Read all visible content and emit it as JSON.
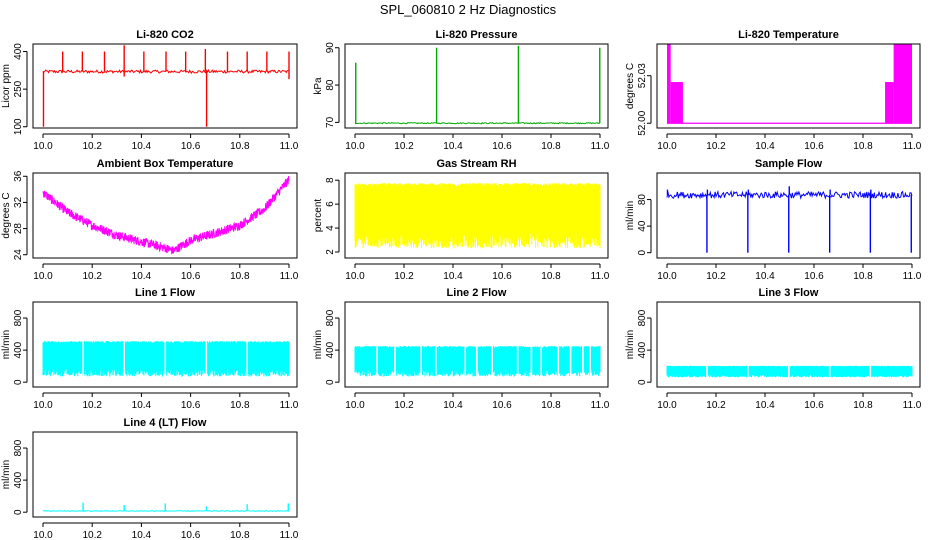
{
  "figure_title": "SPL_060810  2 Hz Diagnostics",
  "chart_data": [
    {
      "type": "line",
      "title": "Li-820 CO2",
      "ylabel": "Licor ppm",
      "x_ticks": [
        "10.0",
        "10.2",
        "10.4",
        "10.6",
        "10.8",
        "11.0"
      ],
      "x_range": [
        10.0,
        11.0
      ],
      "y_ticks": [
        "100",
        "250",
        "400"
      ],
      "y_tick_values": [
        100,
        250,
        400
      ],
      "ylim": [
        95,
        430
      ],
      "color": "#ff0000",
      "pattern": "spikes",
      "base": 320,
      "noise": 6,
      "spikes": [
        {
          "x": 10.002,
          "y": 100
        },
        {
          "x": 10.08,
          "y": 400
        },
        {
          "x": 10.16,
          "y": 400
        },
        {
          "x": 10.25,
          "y": 400
        },
        {
          "x": 10.33,
          "y": 425
        },
        {
          "x": 10.33,
          "y": 300
        },
        {
          "x": 10.41,
          "y": 400
        },
        {
          "x": 10.5,
          "y": 400
        },
        {
          "x": 10.58,
          "y": 400
        },
        {
          "x": 10.66,
          "y": 410
        },
        {
          "x": 10.665,
          "y": 100
        },
        {
          "x": 10.75,
          "y": 400
        },
        {
          "x": 10.83,
          "y": 400
        },
        {
          "x": 10.91,
          "y": 400
        },
        {
          "x": 11.0,
          "y": 400
        },
        {
          "x": 11.0,
          "y": 290
        }
      ]
    },
    {
      "type": "line",
      "title": "Li-820 Pressure",
      "ylabel": "kPa",
      "x_ticks": [
        "10.0",
        "10.2",
        "10.4",
        "10.6",
        "10.8",
        "11.0"
      ],
      "x_range": [
        10.0,
        11.0
      ],
      "y_ticks": [
        "70",
        "80",
        "90"
      ],
      "y_tick_values": [
        70,
        80,
        90
      ],
      "ylim": [
        68.5,
        91
      ],
      "color": "#00aa00",
      "pattern": "flat_spikes",
      "base": 69.8,
      "noise": 0.15,
      "spikes": [
        {
          "x": 10.003,
          "y": 86
        },
        {
          "x": 10.333,
          "y": 90
        },
        {
          "x": 10.667,
          "y": 90.5
        },
        {
          "x": 10.999,
          "y": 90
        }
      ]
    },
    {
      "type": "line",
      "title": "Li-820 Temperature",
      "ylabel": "degrees C",
      "x_ticks": [
        "10.0",
        "10.2",
        "10.4",
        "10.6",
        "10.8",
        "11.0"
      ],
      "x_range": [
        10.0,
        11.0
      ],
      "y_ticks": [
        "52.00",
        "52.03"
      ],
      "y_tick_values": [
        52.0,
        52.03
      ],
      "ylim": [
        51.997,
        52.05
      ],
      "color": "#ff00ff",
      "pattern": "steps",
      "base": 52.0,
      "blocks": [
        {
          "x0": 10.0,
          "x1": 10.015,
          "y": 52.05
        },
        {
          "x0": 10.015,
          "y": 52.026,
          "x1": 10.065
        },
        {
          "x0": 10.89,
          "x1": 10.925,
          "y": 52.026
        },
        {
          "x0": 10.925,
          "x1": 11.0,
          "y": 52.05
        }
      ]
    },
    {
      "type": "line",
      "title": "Ambient Box Temperature",
      "ylabel": "degrees C",
      "x_ticks": [
        "10.0",
        "10.2",
        "10.4",
        "10.6",
        "10.8",
        "11.0"
      ],
      "x_range": [
        10.0,
        11.0
      ],
      "y_ticks": [
        "24",
        "28",
        "32",
        "36"
      ],
      "y_tick_values": [
        24,
        28,
        32,
        36
      ],
      "ylim": [
        23.5,
        36.5
      ],
      "color": "#ff00ff",
      "pattern": "vshape",
      "noise": 0.7,
      "points": [
        {
          "x": 10.0,
          "y": 33.5
        },
        {
          "x": 10.1,
          "y": 30.5
        },
        {
          "x": 10.2,
          "y": 28.5
        },
        {
          "x": 10.3,
          "y": 27.0
        },
        {
          "x": 10.4,
          "y": 26.0
        },
        {
          "x": 10.5,
          "y": 25.0
        },
        {
          "x": 10.53,
          "y": 24.6
        },
        {
          "x": 10.6,
          "y": 26.2
        },
        {
          "x": 10.7,
          "y": 27.3
        },
        {
          "x": 10.8,
          "y": 28.5
        },
        {
          "x": 10.9,
          "y": 31.0
        },
        {
          "x": 11.0,
          "y": 35.5
        }
      ]
    },
    {
      "type": "line",
      "title": "Gas Stream RH",
      "ylabel": "percent",
      "x_ticks": [
        "10.0",
        "10.2",
        "10.4",
        "10.6",
        "10.8",
        "11.0"
      ],
      "x_range": [
        10.0,
        11.0
      ],
      "y_ticks": [
        "2",
        "4",
        "6",
        "8"
      ],
      "y_tick_values": [
        2,
        4,
        6,
        8
      ],
      "ylim": [
        1.5,
        8.6
      ],
      "color": "#ffff00",
      "pattern": "band",
      "upper": 7.6,
      "lower": 2.3
    },
    {
      "type": "line",
      "title": "Sample Flow",
      "ylabel": "ml/min",
      "x_ticks": [
        "10.0",
        "10.2",
        "10.4",
        "10.6",
        "10.8",
        "11.0"
      ],
      "x_range": [
        10.0,
        11.0
      ],
      "y_ticks": [
        "0",
        "40",
        "80"
      ],
      "y_tick_values": [
        0,
        40,
        80
      ],
      "ylim": [
        -8,
        120
      ],
      "color": "#0000ff",
      "pattern": "flat_spikes",
      "base": 87,
      "noise": 5,
      "spikes": [
        {
          "x": 10.002,
          "y": 95
        },
        {
          "x": 10.163,
          "y": 0
        },
        {
          "x": 10.165,
          "y": 95
        },
        {
          "x": 10.33,
          "y": 0
        },
        {
          "x": 10.332,
          "y": 95
        },
        {
          "x": 10.497,
          "y": 0
        },
        {
          "x": 10.499,
          "y": 100
        },
        {
          "x": 10.664,
          "y": 0
        },
        {
          "x": 10.666,
          "y": 95
        },
        {
          "x": 10.83,
          "y": 0
        },
        {
          "x": 10.832,
          "y": 95
        },
        {
          "x": 10.997,
          "y": 0
        }
      ]
    },
    {
      "type": "line",
      "title": "Line 1 Flow",
      "ylabel": "ml/min",
      "x_ticks": [
        "10.0",
        "10.2",
        "10.4",
        "10.6",
        "10.8",
        "11.0"
      ],
      "x_range": [
        10.0,
        11.0
      ],
      "y_ticks": [
        "0",
        "400",
        "800"
      ],
      "y_tick_values": [
        0,
        400,
        800
      ],
      "ylim": [
        -60,
        1000
      ],
      "color": "#00ffff",
      "pattern": "band",
      "upper": 500,
      "lower": 70,
      "gaps": [
        10.163,
        10.33,
        10.497,
        10.664,
        10.83
      ]
    },
    {
      "type": "line",
      "title": "Line 2 Flow",
      "ylabel": "ml/min",
      "x_ticks": [
        "10.0",
        "10.2",
        "10.4",
        "10.6",
        "10.8",
        "11.0"
      ],
      "x_range": [
        10.0,
        11.0
      ],
      "y_ticks": [
        "0",
        "400",
        "800"
      ],
      "y_tick_values": [
        0,
        400,
        800
      ],
      "ylim": [
        -60,
        1000
      ],
      "color": "#00ffff",
      "pattern": "band",
      "upper": 440,
      "lower": 70,
      "gaps": [
        10.09,
        10.163,
        10.27,
        10.33,
        10.45,
        10.497,
        10.56,
        10.664,
        10.72,
        10.76,
        10.83,
        10.88,
        10.93,
        10.96
      ]
    },
    {
      "type": "line",
      "title": "Line 3 Flow",
      "ylabel": "ml/min",
      "x_ticks": [
        "10.0",
        "10.2",
        "10.4",
        "10.6",
        "10.8",
        "11.0"
      ],
      "x_range": [
        10.0,
        11.0
      ],
      "y_ticks": [
        "0",
        "400",
        "800"
      ],
      "y_tick_values": [
        0,
        400,
        800
      ],
      "ylim": [
        -60,
        1000
      ],
      "color": "#00ffff",
      "pattern": "band",
      "upper": 200,
      "lower": 60,
      "gaps": [
        10.163,
        10.33,
        10.497,
        10.664,
        10.83
      ]
    },
    {
      "type": "line",
      "title": "Line 4 (LT) Flow",
      "ylabel": "ml/min",
      "x_ticks": [
        "10.0",
        "10.2",
        "10.4",
        "10.6",
        "10.8",
        "11.0"
      ],
      "x_range": [
        10.0,
        11.0
      ],
      "y_ticks": [
        "0",
        "400",
        "800"
      ],
      "y_tick_values": [
        0,
        400,
        800
      ],
      "ylim": [
        -60,
        1000
      ],
      "color": "#00ffff",
      "pattern": "flat_spikes",
      "base": 15,
      "noise": 4,
      "spikes": [
        {
          "x": 10.163,
          "y": 120
        },
        {
          "x": 10.33,
          "y": 90
        },
        {
          "x": 10.497,
          "y": 110
        },
        {
          "x": 10.664,
          "y": 70
        },
        {
          "x": 10.83,
          "y": 100
        },
        {
          "x": 10.997,
          "y": 110
        }
      ]
    }
  ]
}
